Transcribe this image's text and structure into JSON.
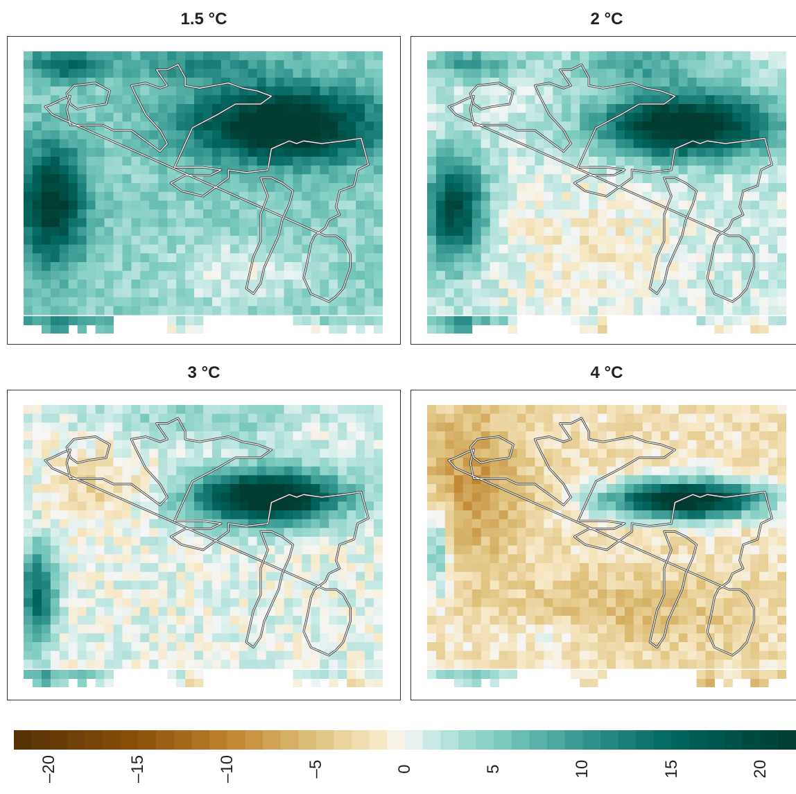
{
  "chart_data": {
    "type": "heatmap",
    "panels": [
      {
        "title": "1.5 °C",
        "warming_level": 1.5
      },
      {
        "title": "2 °C",
        "warming_level": 2
      },
      {
        "title": "3 °C",
        "warming_level": 3
      },
      {
        "title": "4 °C",
        "warming_level": 4
      }
    ],
    "colorbar": {
      "min": -22,
      "max": 22,
      "ticks": [
        "–20",
        "–15",
        "–10",
        "–5",
        "0",
        "5",
        "10",
        "15",
        "20"
      ],
      "tick_values": [
        -20,
        -15,
        -10,
        -5,
        0,
        5,
        10,
        15,
        20
      ]
    }
  },
  "colors": {
    "brown_dark": "#543005",
    "brown_mid": "#bf812d",
    "tan_light": "#f6e8c3",
    "neutral": "#f5f5f5",
    "teal_light": "#c7eae5",
    "teal_mid": "#35978f",
    "teal_dark": "#003c30"
  }
}
